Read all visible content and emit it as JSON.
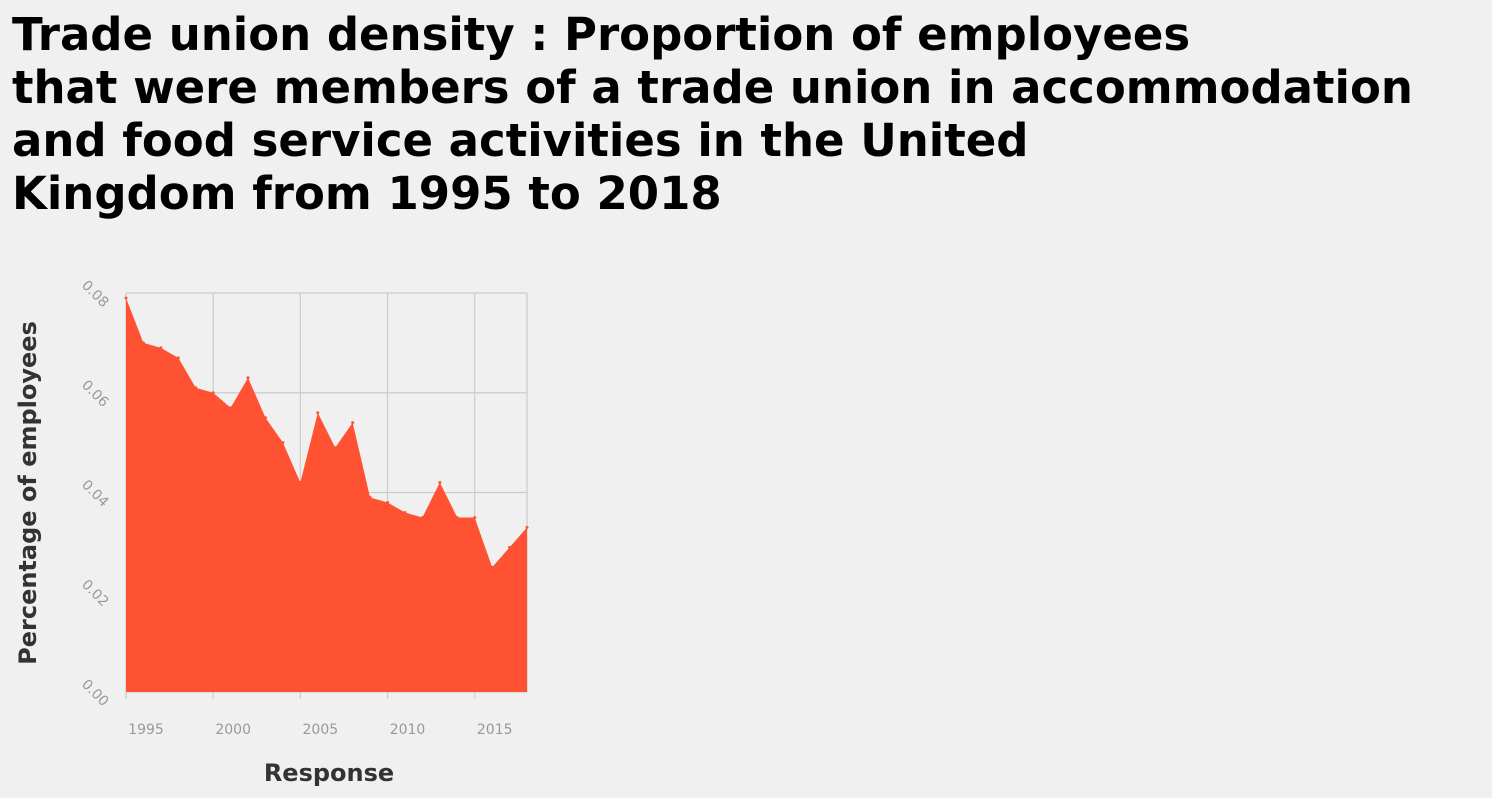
{
  "chart_data": {
    "type": "area",
    "title_lines": [
      "Trade union density : Proportion of employees",
      "that were members of a trade union in accommodation",
      "and food service activities in the United",
      "Kingdom from 1995 to 2018"
    ],
    "xlabel": "Response",
    "ylabel": "Percentage of employees",
    "x": [
      1995,
      1996,
      1997,
      1998,
      1999,
      2000,
      2001,
      2002,
      2003,
      2004,
      2005,
      2006,
      2007,
      2008,
      2009,
      2010,
      2011,
      2012,
      2013,
      2014,
      2015,
      2016,
      2017,
      2018
    ],
    "values": [
      0.079,
      0.07,
      0.069,
      0.067,
      0.061,
      0.06,
      0.057,
      0.063,
      0.055,
      0.05,
      0.042,
      0.056,
      0.049,
      0.054,
      0.039,
      0.038,
      0.036,
      0.035,
      0.042,
      0.035,
      0.035,
      0.025,
      0.029,
      0.033
    ],
    "xlim": [
      1995,
      2018
    ],
    "ylim": [
      0,
      0.08
    ],
    "x_ticks": [
      "1995",
      "2000",
      "2005",
      "2010",
      "2015"
    ],
    "y_ticks": [
      "0.00",
      "0.02",
      "0.04",
      "0.06",
      "0.08"
    ],
    "grid": true,
    "colors": {
      "fill": "#ff5233",
      "grid": "#cccccc",
      "tick_label": "#999999"
    }
  }
}
